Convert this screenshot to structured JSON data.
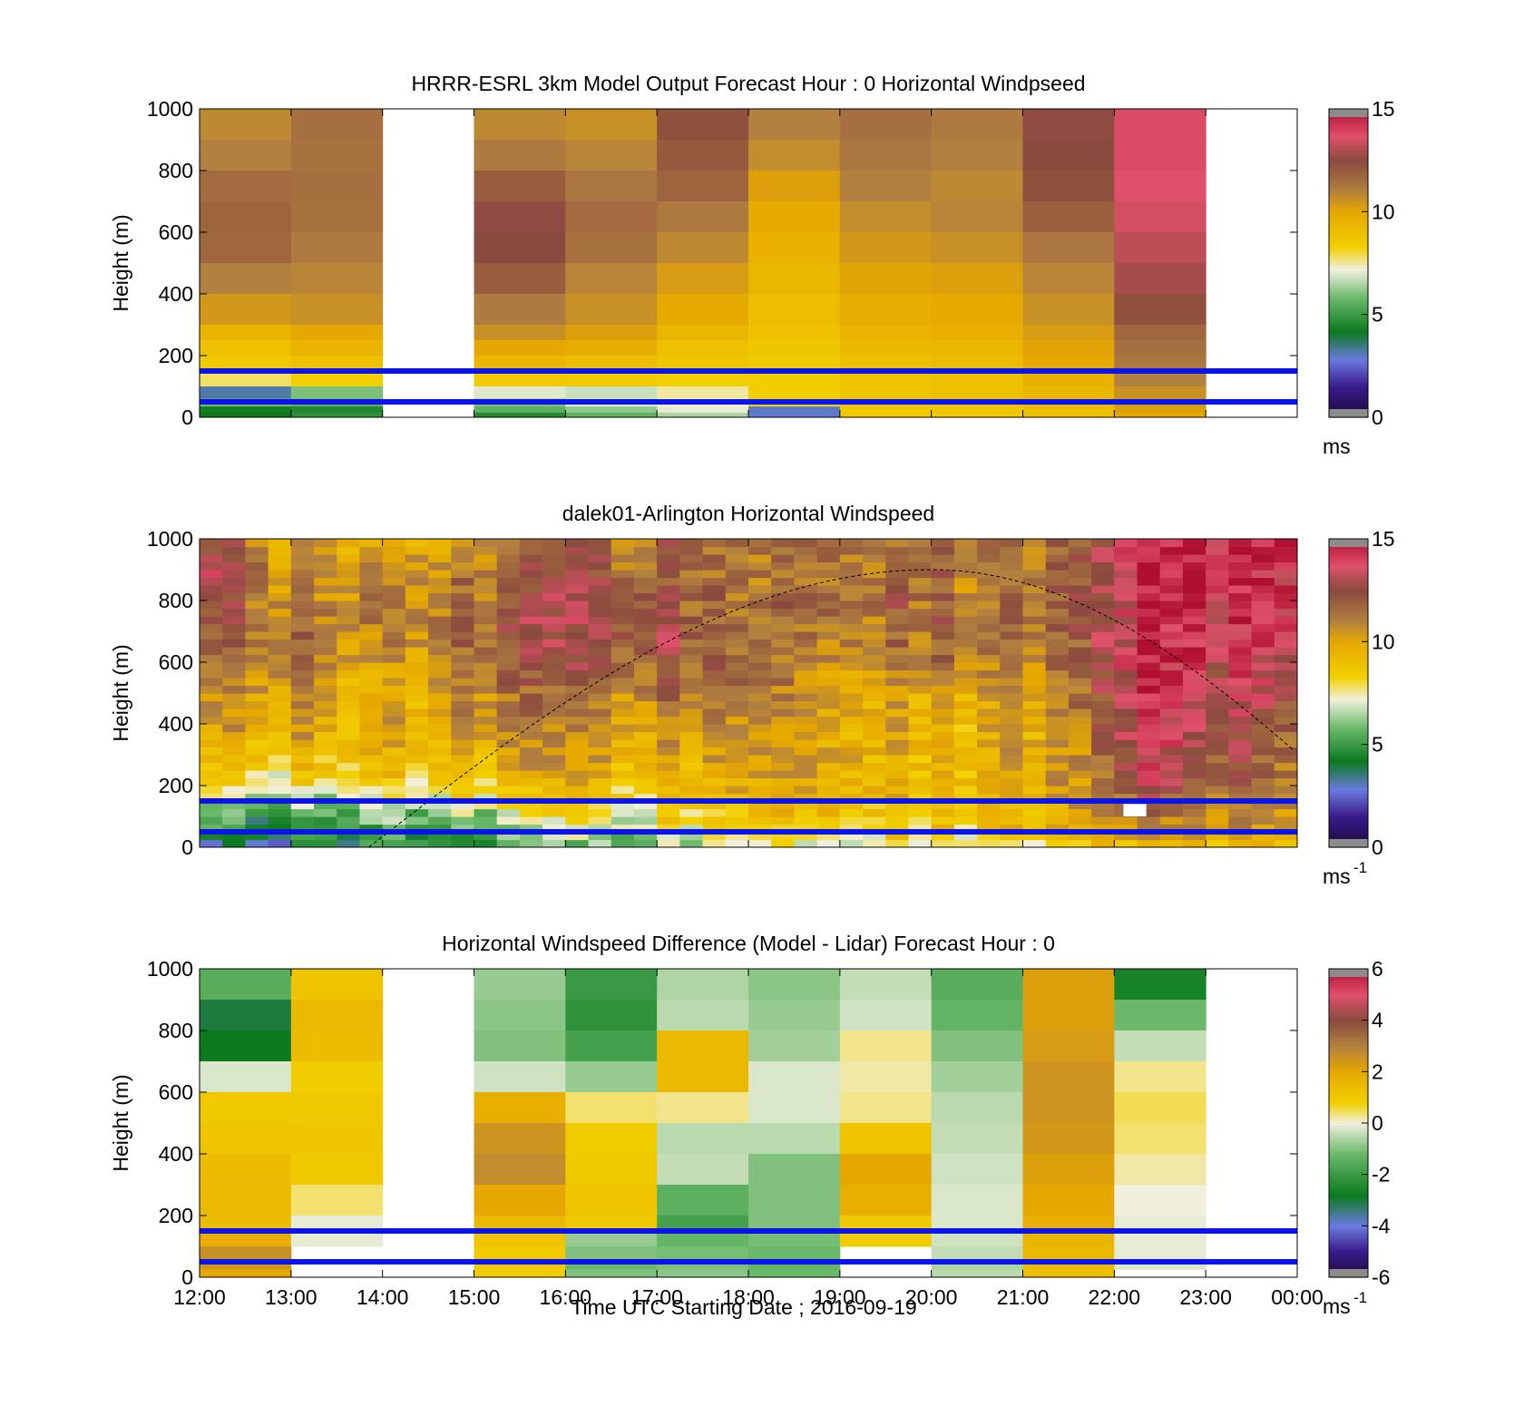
{
  "figure": {
    "xlabel": "Time UTC  Starting Date ; 2016-09-19",
    "x_ticks": [
      "12:00",
      "13:00",
      "14:00",
      "15:00",
      "16:00",
      "17:00",
      "18:00",
      "19:00",
      "20:00",
      "21:00",
      "22:00",
      "23:00",
      "00:00"
    ]
  },
  "colors": {
    "ref_line": "#0a14e6",
    "speed_stops": [
      [
        0,
        "#1a0a3c"
      ],
      [
        1.5,
        "#3a1a8a"
      ],
      [
        2.8,
        "#6a7adf"
      ],
      [
        4.2,
        "#0b7a1e"
      ],
      [
        5.8,
        "#6ab86a"
      ],
      [
        7.2,
        "#f1f0de"
      ],
      [
        8.3,
        "#f2d000"
      ],
      [
        10,
        "#e6a800"
      ],
      [
        11,
        "#b3813f"
      ],
      [
        12.5,
        "#8a4a3e"
      ],
      [
        13.7,
        "#e0506a"
      ],
      [
        15,
        "#b01030"
      ]
    ],
    "diff_stops": [
      [
        -6,
        "#1a0a3c"
      ],
      [
        -5,
        "#3a1a8a"
      ],
      [
        -4,
        "#6a7adf"
      ],
      [
        -2.8,
        "#0b7a1e"
      ],
      [
        -1.2,
        "#6ab86a"
      ],
      [
        0,
        "#f1f0de"
      ],
      [
        0.8,
        "#f2d000"
      ],
      [
        2,
        "#e6a800"
      ],
      [
        3,
        "#b3813f"
      ],
      [
        4,
        "#8a4a3e"
      ],
      [
        5,
        "#e0506a"
      ],
      [
        6,
        "#b01030"
      ]
    ]
  },
  "chart_data": [
    {
      "type": "heatmap",
      "title": "HRRR-ESRL 3km Model Output   Forecast Hour : 0 Horizontal Windpseed",
      "xlabel": "",
      "ylabel": "Height (m)",
      "ylim": [
        0,
        1000
      ],
      "y_ticks": [
        0,
        200,
        400,
        600,
        800,
        1000
      ],
      "colorbar": {
        "range": [
          0,
          15
        ],
        "ticks": [
          0,
          5,
          10,
          15
        ],
        "unit": "ms",
        "unit_sup": ""
      },
      "reference_lines_m": [
        150,
        50
      ],
      "x_hours": [
        0,
        1,
        3,
        4,
        5,
        6,
        7,
        8,
        9,
        10
      ],
      "heights_m": [
        1000,
        900,
        800,
        700,
        600,
        500,
        400,
        300,
        250,
        200,
        150,
        100,
        60,
        35,
        15
      ],
      "values": [
        [
          10.8,
          11.5,
          10.8,
          10.6,
          12.3,
          11.0,
          11.5,
          11.2,
          12.6,
          13.8
        ],
        [
          11.0,
          11.4,
          11.2,
          10.9,
          12.1,
          10.7,
          11.3,
          11.0,
          12.5,
          13.8
        ],
        [
          11.6,
          11.5,
          12.0,
          11.3,
          11.8,
          10.2,
          11.0,
          10.8,
          12.3,
          13.7
        ],
        [
          11.8,
          11.4,
          12.6,
          11.6,
          11.2,
          9.9,
          10.7,
          10.9,
          11.9,
          13.5
        ],
        [
          11.7,
          11.2,
          12.5,
          11.4,
          10.8,
          9.6,
          10.4,
          10.6,
          11.3,
          13.2
        ],
        [
          11.0,
          10.9,
          12.0,
          10.9,
          10.3,
          9.4,
          10.1,
          10.2,
          10.9,
          12.9
        ],
        [
          10.4,
          10.6,
          11.2,
          10.6,
          9.9,
          9.1,
          9.8,
          9.9,
          10.6,
          12.3
        ],
        [
          9.5,
          10.0,
          10.6,
          10.2,
          9.4,
          8.9,
          9.5,
          9.7,
          10.3,
          11.7
        ],
        [
          9.0,
          9.5,
          10.0,
          9.8,
          9.0,
          8.7,
          9.3,
          9.4,
          10.1,
          11.5
        ],
        [
          8.6,
          8.9,
          9.4,
          9.1,
          8.7,
          8.5,
          9.0,
          9.2,
          9.9,
          11.3
        ],
        [
          7.8,
          8.3,
          8.6,
          8.5,
          8.3,
          8.4,
          8.8,
          9.0,
          9.6,
          11.0
        ],
        [
          3.2,
          6.0,
          7.0,
          6.8,
          7.5,
          8.4,
          8.8,
          9.0,
          9.4,
          10.6
        ],
        [
          5.9,
          5.6,
          6.0,
          7.0,
          7.3,
          8.2,
          8.9,
          8.9,
          9.3,
          10.4
        ],
        [
          4.3,
          4.6,
          5.6,
          6.2,
          7.1,
          3.0,
          8.6,
          8.7,
          9.1,
          10.2
        ],
        [
          4.2,
          4.8,
          4.6,
          5.6,
          6.5,
          2.9,
          8.5,
          8.6,
          9.0,
          10.0
        ]
      ]
    },
    {
      "type": "heatmap",
      "title": "dalek01-Arlington  Horizontal Windspeed",
      "xlabel": "",
      "ylabel": "Height (m)",
      "ylim": [
        0,
        1000
      ],
      "y_ticks": [
        0,
        200,
        400,
        600,
        800,
        1000
      ],
      "colorbar": {
        "range": [
          0,
          15
        ],
        "ticks": [
          0,
          5,
          10,
          15
        ],
        "unit": "ms",
        "unit_sup": "-1"
      },
      "reference_lines_m": [
        150,
        50
      ],
      "time_range_h": [
        0,
        11.9
      ],
      "time_step_h": 0.25,
      "height_step_m": 25,
      "profile_keys_height_m": [
        0,
        50,
        100,
        150,
        200,
        300,
        400,
        500,
        600,
        700,
        800,
        900,
        1000
      ],
      "profile_keys_hour": [
        0,
        1,
        2,
        3,
        4,
        5,
        6,
        7,
        8,
        9,
        9.75,
        10.25,
        11,
        11.9
      ],
      "profile_values": [
        [
          2.0,
          4.5,
          4.8,
          6.5,
          7.8,
          9.0,
          9.8,
          10.5,
          11.0,
          11.3,
          12.8,
          13.2,
          12.0
        ],
        [
          3.5,
          4.6,
          5.0,
          6.2,
          7.6,
          9.3,
          10.2,
          10.8,
          11.5,
          11.8,
          11.2,
          10.8,
          10.5
        ],
        [
          5.0,
          5.2,
          5.8,
          7.0,
          8.2,
          9.2,
          9.6,
          9.3,
          10.0,
          10.8,
          11.0,
          10.4,
          10.0
        ],
        [
          4.5,
          5.0,
          6.0,
          7.5,
          8.5,
          9.5,
          10.3,
          10.8,
          11.2,
          11.4,
          11.3,
          11.0,
          10.5
        ],
        [
          4.8,
          6.5,
          7.2,
          8.3,
          9.0,
          10.0,
          10.5,
          11.0,
          12.0,
          12.5,
          12.3,
          11.8,
          11.5
        ],
        [
          6.0,
          7.5,
          8.2,
          8.8,
          9.3,
          10.2,
          10.8,
          11.5,
          12.5,
          13.0,
          12.5,
          12.0,
          12.0
        ],
        [
          6.5,
          8.0,
          8.6,
          9.2,
          9.6,
          10.0,
          10.5,
          11.0,
          11.3,
          11.2,
          11.0,
          10.8,
          11.0
        ],
        [
          7.0,
          8.3,
          8.8,
          9.3,
          9.6,
          9.8,
          9.5,
          9.8,
          10.3,
          11.0,
          11.5,
          11.2,
          11.0
        ],
        [
          7.5,
          8.6,
          9.0,
          9.4,
          9.5,
          9.6,
          9.7,
          10.4,
          11.3,
          11.7,
          11.8,
          11.6,
          11.2
        ],
        [
          7.8,
          8.8,
          9.1,
          9.4,
          9.6,
          9.7,
          10.0,
          10.5,
          10.8,
          11.0,
          11.3,
          11.4,
          11.2
        ],
        [
          8.2,
          9.2,
          9.6,
          9.8,
          10.0,
          10.1,
          10.5,
          11.0,
          11.3,
          11.5,
          11.5,
          11.6,
          11.4
        ],
        [
          9.2,
          10.0,
          10.6,
          11.5,
          12.5,
          13.3,
          13.6,
          13.8,
          14.0,
          14.0,
          14.0,
          14.2,
          14.0
        ],
        [
          9.8,
          10.3,
          10.8,
          11.5,
          12.0,
          12.8,
          13.3,
          13.6,
          13.8,
          14.2,
          14.5,
          14.5,
          14.0
        ],
        [
          9.8,
          10.5,
          11.0,
          11.4,
          11.6,
          11.8,
          12.5,
          13.2,
          13.6,
          14.2,
          14.6,
          14.5,
          15.5
        ]
      ],
      "white_patch": {
        "hours": [
          10.1,
          10.35
        ],
        "heights_m": [
          100,
          140
        ]
      },
      "solar_curve": {
        "start_hour": 1.85,
        "peak_hour": 8.0,
        "peak_height_m": 900,
        "half_period_h": 6.15
      }
    },
    {
      "type": "heatmap",
      "title": "Horizontal Windspeed Difference (Model - Lidar) Forecast Hour : 0",
      "xlabel": "Time UTC  Starting Date ; 2016-09-19",
      "ylabel": "Height (m)",
      "ylim": [
        0,
        1000
      ],
      "y_ticks": [
        0,
        200,
        400,
        600,
        800,
        1000
      ],
      "colorbar": {
        "range": [
          -6,
          6
        ],
        "ticks": [
          -6,
          -4,
          -2,
          0,
          2,
          4,
          6
        ],
        "unit": "ms",
        "unit_sup": "-1"
      },
      "reference_lines_m": [
        150,
        50
      ],
      "x_hours": [
        0,
        1,
        3,
        4,
        5,
        6,
        7,
        8,
        9,
        10
      ],
      "heights_m": [
        1000,
        900,
        800,
        700,
        600,
        500,
        400,
        300,
        200,
        150,
        100,
        50,
        25
      ],
      "values": [
        [
          -1.5,
          1.2,
          -0.8,
          -2.0,
          -0.6,
          -0.9,
          -0.4,
          -1.5,
          2.2,
          -2.6
        ],
        [
          -3.0,
          1.5,
          -0.9,
          -2.2,
          -0.5,
          -0.8,
          -0.3,
          -1.3,
          2.2,
          -1.2
        ],
        [
          -2.8,
          1.4,
          -1.0,
          -1.8,
          1.5,
          -0.7,
          0.3,
          -1.0,
          2.3,
          -0.4
        ],
        [
          -0.2,
          0.9,
          -0.3,
          -0.8,
          1.5,
          -0.2,
          0.2,
          -0.7,
          2.5,
          0.3
        ],
        [
          1.0,
          1.0,
          1.8,
          0.4,
          0.3,
          -0.2,
          0.3,
          -0.5,
          2.5,
          0.5
        ],
        [
          1.2,
          1.1,
          2.5,
          0.9,
          -0.5,
          -0.5,
          1.2,
          -0.4,
          2.4,
          0.4
        ],
        [
          1.4,
          1.0,
          2.7,
          1.0,
          -0.4,
          -1.0,
          2.0,
          -0.3,
          2.2,
          0.2
        ],
        [
          1.5,
          0.4,
          2.0,
          1.2,
          -1.4,
          -1.0,
          1.8,
          -0.2,
          2.0,
          0.0
        ],
        [
          1.4,
          -0.1,
          1.5,
          1.0,
          -1.8,
          -1.0,
          1.0,
          -0.2,
          1.8,
          -0.1
        ],
        [
          1.8,
          -0.1,
          1.2,
          -0.8,
          -1.3,
          -1.1,
          0.9,
          -0.3,
          1.6,
          -0.1
        ],
        [
          2.6,
          null,
          1.0,
          -1.0,
          -1.1,
          -1.2,
          null,
          -0.4,
          1.5,
          -0.1
        ],
        [
          2.4,
          null,
          1.0,
          -1.2,
          -1.0,
          -1.3,
          null,
          -0.6,
          1.4,
          -0.2
        ],
        [
          2.0,
          null,
          0.9,
          -1.0,
          -0.9,
          -1.2,
          null,
          -0.5,
          1.3,
          null
        ]
      ]
    }
  ]
}
